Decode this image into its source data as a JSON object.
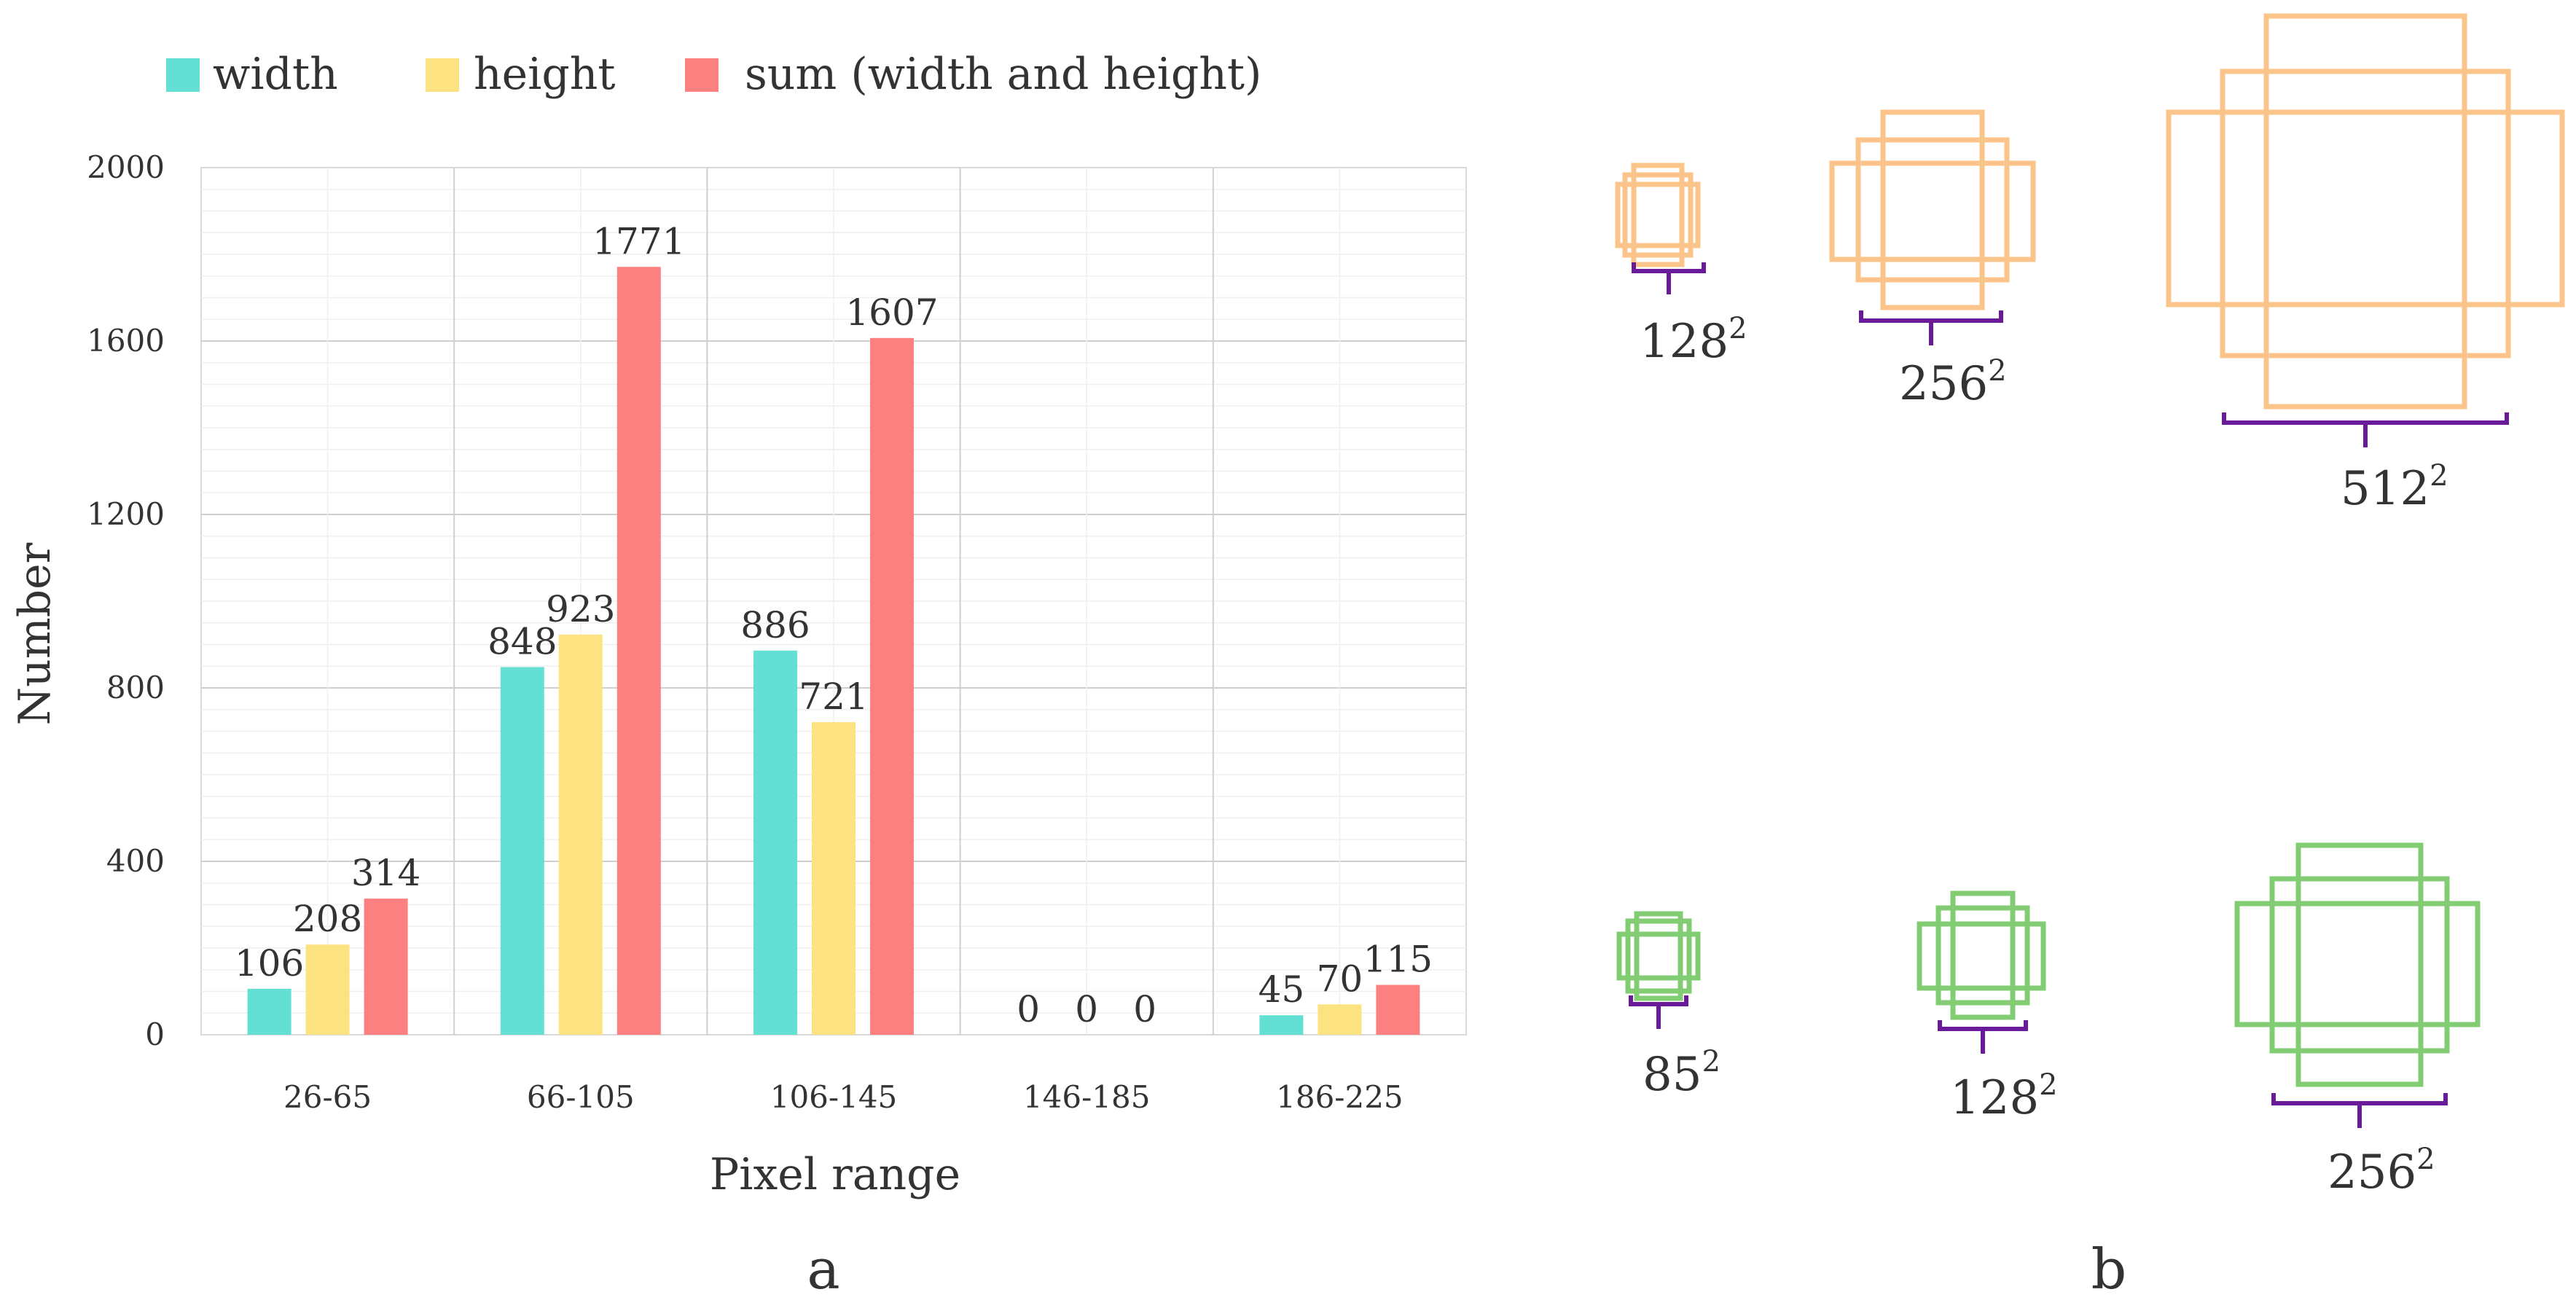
{
  "chart_data": {
    "type": "bar",
    "categories": [
      "26-65",
      "66-105",
      "106-145",
      "146-185",
      "186-225"
    ],
    "series": [
      {
        "name": "width",
        "values": [
          106,
          848,
          886,
          0,
          45
        ]
      },
      {
        "name": "height",
        "values": [
          208,
          923,
          721,
          0,
          70
        ]
      },
      {
        "name": "sum (width and height)",
        "values": [
          314,
          1771,
          1607,
          0,
          115
        ]
      }
    ],
    "xlabel": "Pixel range",
    "ylabel": "Number",
    "ylim": [
      0,
      2000
    ],
    "yticks": [
      "0",
      "400",
      "800",
      "1200",
      "1600",
      "2000"
    ],
    "grid": true,
    "legend": "top-left",
    "panel_label": "a"
  },
  "colors": {
    "width": "#63e0d3",
    "height": "#fde281",
    "sum": "#fd8080",
    "orange_box": "#fbc48a",
    "green_box": "#82cc74",
    "bracket": "#6a1b9a"
  },
  "anchors": {
    "panel_label": "b",
    "orange_row": [
      {
        "base": "128",
        "exp": "2"
      },
      {
        "base": "256",
        "exp": "2"
      },
      {
        "base": "512",
        "exp": "2"
      }
    ],
    "green_row": [
      {
        "base": "85",
        "exp": "2"
      },
      {
        "base": "128",
        "exp": "2"
      },
      {
        "base": "256",
        "exp": "2"
      }
    ]
  }
}
